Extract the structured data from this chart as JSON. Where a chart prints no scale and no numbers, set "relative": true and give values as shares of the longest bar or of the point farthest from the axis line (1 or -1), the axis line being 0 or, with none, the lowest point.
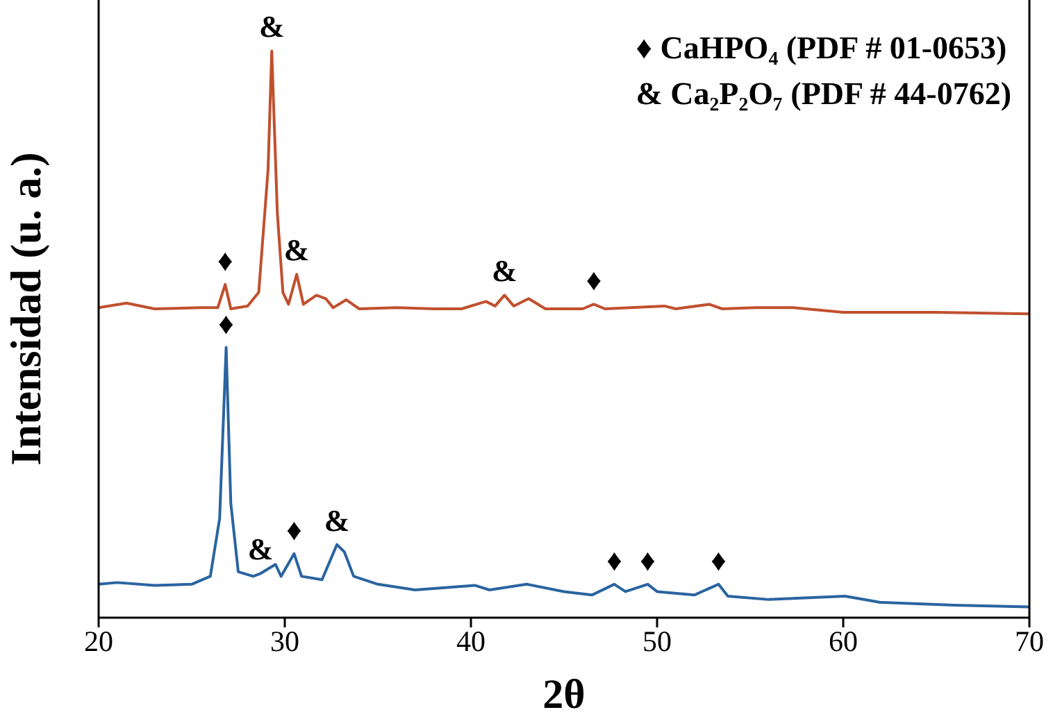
{
  "chart_data": {
    "type": "line",
    "relative": true,
    "xlabel": "2θ",
    "ylabel": "Intensidad (u. a.)",
    "xlim": [
      20,
      70
    ],
    "xticks": [
      20,
      30,
      40,
      50,
      60,
      70
    ],
    "grid": false,
    "legend": false,
    "marker": "none",
    "line_style": "solid",
    "series": [
      {
        "color": "#c0502e",
        "x": [
          20,
          21.5,
          23,
          25.5,
          26.4,
          26.8,
          27.1,
          28,
          28.6,
          29.1,
          29.3,
          29.6,
          29.9,
          30.2,
          30.64,
          31,
          31.7,
          32.2,
          32.6,
          33.3,
          34,
          36,
          38,
          39.5,
          40.8,
          41.3,
          41.8,
          42.3,
          43.1,
          44,
          46,
          46.6,
          47.2,
          50.4,
          51,
          52.8,
          53.5,
          55.3,
          57.3,
          60,
          65,
          70
        ],
        "values": [
          0.547,
          0.555,
          0.545,
          0.547,
          0.547,
          0.588,
          0.545,
          0.55,
          0.574,
          0.79,
          1.0,
          0.714,
          0.574,
          0.553,
          0.606,
          0.553,
          0.569,
          0.563,
          0.547,
          0.561,
          0.545,
          0.547,
          0.545,
          0.545,
          0.558,
          0.55,
          0.569,
          0.55,
          0.563,
          0.545,
          0.545,
          0.553,
          0.545,
          0.55,
          0.545,
          0.553,
          0.545,
          0.547,
          0.547,
          0.539,
          0.539,
          0.536
        ]
      },
      {
        "color": "#2a64a0",
        "x": [
          20,
          21,
          23,
          25,
          26,
          26.5,
          26.85,
          27.1,
          27.5,
          28.3,
          28.7,
          29.5,
          29.8,
          30.5,
          30.9,
          32,
          32.8,
          33.2,
          33.7,
          35,
          37,
          40.2,
          41,
          43,
          45,
          46.5,
          47.7,
          48.3,
          49.5,
          50,
          52,
          53.3,
          53.8,
          56,
          60.1,
          62,
          66,
          70
        ],
        "values": [
          0.059,
          0.062,
          0.057,
          0.059,
          0.073,
          0.175,
          0.477,
          0.202,
          0.081,
          0.073,
          0.078,
          0.094,
          0.073,
          0.113,
          0.073,
          0.067,
          0.129,
          0.116,
          0.073,
          0.059,
          0.049,
          0.057,
          0.049,
          0.059,
          0.046,
          0.04,
          0.059,
          0.046,
          0.059,
          0.046,
          0.04,
          0.059,
          0.038,
          0.032,
          0.038,
          0.027,
          0.022,
          0.019
        ]
      }
    ],
    "annotations": [
      "♦ CaHPO₄ (PDF # 01-0653)",
      "& Ca₂P₂O₇ (PDF # 44-0762)",
      {
        "text": "♦",
        "x": 26.8,
        "y": 0.588
      },
      {
        "text": "&",
        "x": 29.3,
        "y": 1.0
      },
      {
        "text": "&",
        "x": 30.64,
        "y": 0.606
      },
      {
        "text": "&",
        "x": 41.8,
        "y": 0.569
      },
      {
        "text": "♦",
        "x": 46.6,
        "y": 0.553
      },
      {
        "text": "♦",
        "x": 26.85,
        "y": 0.477
      },
      {
        "text": "&",
        "x": 28.7,
        "y": 0.078
      },
      {
        "text": "♦",
        "x": 30.5,
        "y": 0.113
      },
      {
        "text": "&",
        "x": 32.8,
        "y": 0.129
      },
      {
        "text": "♦",
        "x": 47.7,
        "y": 0.059
      },
      {
        "text": "♦",
        "x": 49.5,
        "y": 0.059
      },
      {
        "text": "♦",
        "x": 53.3,
        "y": 0.059
      }
    ]
  }
}
